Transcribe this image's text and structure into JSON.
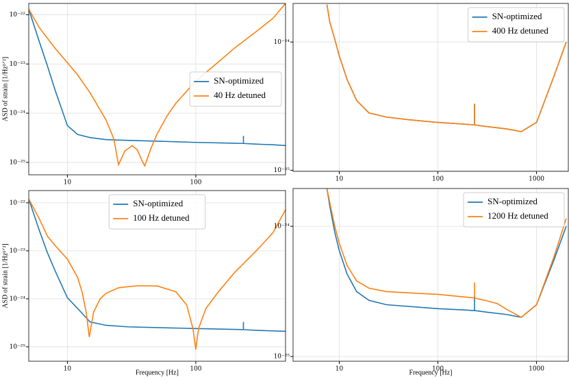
{
  "chart_data": [
    {
      "type": "line",
      "xscale": "log",
      "yscale": "log",
      "grid": true,
      "legend": "center right",
      "ylabel": "ASD of strain [1/Hz¹ᐟ²]",
      "xlim": [
        5,
        500
      ],
      "ylim": [
        5.6e-26,
        1.7e-22
      ],
      "xticks": [
        10,
        100
      ],
      "yticks": [
        {
          "value": 1e-22,
          "label": "10⁻²²"
        },
        {
          "value": 1e-23,
          "label": "10⁻²³"
        },
        {
          "value": 1e-24,
          "label": "10⁻²⁴"
        },
        {
          "value": 1e-25,
          "label": "10⁻²⁵"
        }
      ],
      "series": [
        {
          "name": "SN-optimized",
          "color": "#1f77b4",
          "x": [
            5,
            6,
            7,
            8,
            10,
            12,
            15,
            20,
            30,
            50,
            100,
            200,
            230,
            235,
            235,
            235,
            240,
            300,
            400,
            500
          ],
          "values": [
            1.3e-22,
            3e-23,
            9e-24,
            3e-24,
            5.6e-25,
            3.7e-25,
            3.2e-25,
            2.9e-25,
            2.8e-25,
            2.7e-25,
            2.55e-25,
            2.45e-25,
            2.43e-25,
            2.43e-25,
            3.45e-25,
            2.43e-25,
            2.42e-25,
            2.35e-25,
            2.28e-25,
            2.2e-25
          ]
        },
        {
          "name": "40 Hz detuned",
          "color": "#ff7f0e",
          "x": [
            5,
            6,
            8,
            10,
            12,
            15,
            20,
            23,
            25,
            28,
            32,
            35,
            38,
            40,
            45,
            50,
            60,
            70,
            100,
            150,
            200,
            300,
            400,
            500
          ],
          "values": [
            1.3e-22,
            5.6e-23,
            2.1e-23,
            1.06e-23,
            6e-24,
            2.6e-24,
            7.3e-25,
            3e-25,
            9e-26,
            1.7e-25,
            2.2e-25,
            1.8e-25,
            1.1e-25,
            8.5e-26,
            2e-25,
            3.8e-25,
            9e-25,
            1.6e-24,
            4.5e-24,
            1.1e-23,
            2.1e-23,
            4.7e-23,
            8.5e-23,
            1.7e-22
          ]
        }
      ]
    },
    {
      "type": "line",
      "xscale": "log",
      "yscale": "log",
      "grid": true,
      "legend": "upper right",
      "xlim": [
        3.4,
        2100
      ],
      "ylim": [
        9.8e-26,
        2e-24
      ],
      "xticks": [
        10,
        100,
        1000
      ],
      "yticks": [
        {
          "value": 1e-24,
          "label": "10⁻²⁴"
        },
        {
          "value": 1e-25,
          "label": "10⁻²⁵"
        }
      ],
      "series": [
        {
          "name": "SN-optimized",
          "color": "#1f77b4",
          "x": [
            7.5,
            8,
            9,
            10,
            12,
            15,
            20,
            30,
            50,
            100,
            200,
            230,
            235,
            235,
            235,
            240,
            300,
            500,
            700,
            1000,
            1500,
            2000
          ],
          "values": [
            1.96e-24,
            1.44e-24,
            1.05e-24,
            7.8e-25,
            5.1e-25,
            3.5e-25,
            2.8e-25,
            2.6e-25,
            2.48e-25,
            2.36e-25,
            2.28e-25,
            2.26e-25,
            2.26e-25,
            3.3e-25,
            2.26e-25,
            2.25e-25,
            2.2e-25,
            2.1e-25,
            2e-25,
            2.36e-25,
            5.4e-25,
            1e-24
          ]
        },
        {
          "name": "400 Hz detuned",
          "color": "#ff7f0e",
          "x": [
            7.5,
            8,
            9,
            10,
            12,
            15,
            20,
            30,
            50,
            100,
            200,
            230,
            235,
            235,
            235,
            240,
            300,
            500,
            700,
            1000,
            1500,
            2000
          ],
          "values": [
            1.96e-24,
            1.44e-24,
            1.05e-24,
            7.8e-25,
            5.1e-25,
            3.5e-25,
            2.8e-25,
            2.6e-25,
            2.48e-25,
            2.36e-25,
            2.28e-25,
            2.26e-25,
            2.26e-25,
            3.3e-25,
            2.26e-25,
            2.25e-25,
            2.2e-25,
            2.1e-25,
            2e-25,
            2.36e-25,
            5.4e-25,
            1e-24
          ]
        }
      ]
    },
    {
      "type": "line",
      "xscale": "log",
      "yscale": "log",
      "grid": true,
      "legend": "upper center",
      "xlabel": "Frequency [Hz]",
      "ylabel": "ASD of strain [1/Hz¹ᐟ²]",
      "xlim": [
        5,
        500
      ],
      "ylim": [
        5e-26,
        1.8e-22
      ],
      "xticks": [
        10,
        100
      ],
      "yticks": [
        {
          "value": 1e-22,
          "label": "10⁻²²"
        },
        {
          "value": 1e-23,
          "label": "10⁻²³"
        },
        {
          "value": 1e-24,
          "label": "10⁻²⁴"
        },
        {
          "value": 1e-25,
          "label": "10⁻²⁵"
        }
      ],
      "series": [
        {
          "name": "SN-optimized",
          "color": "#1f77b4",
          "x": [
            5,
            6,
            7,
            8,
            10,
            12,
            15,
            20,
            30,
            100,
            200,
            230,
            235,
            235,
            235,
            240,
            300,
            500
          ],
          "values": [
            1.2e-22,
            2.8e-23,
            9e-24,
            3.9e-24,
            1.05e-24,
            6.3e-25,
            3.3e-25,
            2.8e-25,
            2.6e-25,
            2.4e-25,
            2.3e-25,
            2.28e-25,
            2.28e-25,
            3.3e-25,
            2.28e-25,
            2.27e-25,
            2.2e-25,
            2.1e-25
          ]
        },
        {
          "name": "100 Hz detuned",
          "color": "#ff7f0e",
          "x": [
            5,
            6,
            7,
            8,
            10,
            12,
            13,
            14,
            14.8,
            16,
            18,
            20,
            25,
            35,
            50,
            70,
            85,
            95,
            100,
            105,
            120,
            150,
            200,
            300,
            400,
            500
          ],
          "values": [
            1.2e-22,
            4.8e-23,
            2e-23,
            1.3e-23,
            6.7e-24,
            2.8e-24,
            1.4e-24,
            5.3e-25,
            1.6e-25,
            5.3e-25,
            1e-24,
            1.3e-24,
            1.7e-24,
            1.87e-24,
            1.85e-24,
            1.4e-24,
            7.4e-25,
            2.4e-25,
            8.8e-26,
            2.4e-25,
            6.3e-25,
            1.4e-24,
            3.5e-24,
            1.04e-23,
            2.4e-23,
            7.2e-23
          ]
        }
      ]
    },
    {
      "type": "line",
      "xscale": "log",
      "yscale": "log",
      "grid": true,
      "legend": "upper right",
      "xlabel": "Frequency [Hz]",
      "xlim": [
        3.4,
        2100
      ],
      "ylim": [
        9.2e-26,
        1.95e-24
      ],
      "xticks": [
        10,
        100,
        1000
      ],
      "yticks": [
        {
          "value": 1e-24,
          "label": "10⁻²⁴"
        },
        {
          "value": 1e-25,
          "label": "10⁻²⁵"
        }
      ],
      "series": [
        {
          "name": "SN-optimized",
          "color": "#1f77b4",
          "x": [
            7.5,
            8,
            9,
            10,
            12,
            15,
            20,
            30,
            100,
            200,
            230,
            235,
            235,
            235,
            240,
            300,
            500,
            700,
            1000,
            1500,
            2000
          ],
          "values": [
            1.95e-24,
            1.44e-24,
            9e-25,
            6.5e-25,
            4.3e-25,
            3.15e-25,
            2.7e-25,
            2.5e-25,
            2.33e-25,
            2.27e-25,
            2.25e-25,
            2.25e-25,
            2.9e-25,
            2.25e-25,
            2.25e-25,
            2.2e-25,
            2.1e-25,
            2e-25,
            2.5e-25,
            5.5e-25,
            1e-24
          ]
        },
        {
          "name": "1200 Hz detuned",
          "color": "#ff7f0e",
          "x": [
            7.5,
            8,
            9,
            10,
            12,
            15,
            20,
            30,
            100,
            200,
            230,
            235,
            235,
            235,
            240,
            300,
            400,
            500,
            700,
            1000,
            1500,
            2000
          ],
          "values": [
            1.95e-24,
            1.53e-24,
            1e-24,
            7.4e-25,
            5e-25,
            3.8e-25,
            3.35e-25,
            3.15e-25,
            3e-25,
            2.85e-25,
            2.82e-25,
            2.82e-25,
            3.7e-25,
            2.82e-25,
            2.8e-25,
            2.7e-25,
            2.55e-25,
            2.3e-25,
            2e-25,
            2.5e-25,
            5.8e-25,
            1.15e-24
          ]
        }
      ]
    }
  ]
}
